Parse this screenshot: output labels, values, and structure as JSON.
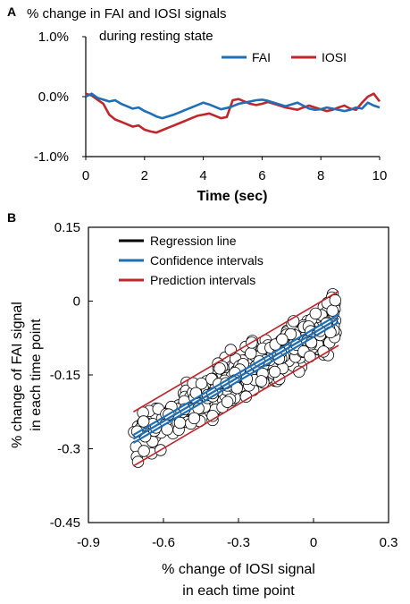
{
  "panels": {
    "a": {
      "letter": "A"
    },
    "b": {
      "letter": "B"
    }
  },
  "colors": {
    "fai": "#1f6fb6",
    "iosi": "#c0272d",
    "regression": "#000000"
  },
  "chart_data": [
    {
      "type": "line",
      "title": "% change in FAI and IOSI signals",
      "subtitle": "during resting state",
      "xlabel": "Time (sec)",
      "ylabel": "",
      "xlim": [
        0,
        10
      ],
      "ylim": [
        -1.0,
        1.0
      ],
      "xticks": [
        "0",
        "2",
        "4",
        "6",
        "8",
        "10"
      ],
      "yticks": [
        "1.0%",
        "0.0%",
        "-1.0%"
      ],
      "legend_position": "top-right",
      "x": [
        0.0,
        0.2,
        0.4,
        0.6,
        0.8,
        1.0,
        1.2,
        1.4,
        1.6,
        1.8,
        2.0,
        2.2,
        2.4,
        2.6,
        2.8,
        3.0,
        3.2,
        3.4,
        3.6,
        3.8,
        4.0,
        4.2,
        4.4,
        4.6,
        4.8,
        5.0,
        5.2,
        5.4,
        5.6,
        5.8,
        6.0,
        6.2,
        6.4,
        6.6,
        6.8,
        7.0,
        7.2,
        7.4,
        7.6,
        7.8,
        8.0,
        8.2,
        8.4,
        8.6,
        8.8,
        9.0,
        9.2,
        9.4,
        9.6,
        9.8,
        10.0
      ],
      "series": [
        {
          "name": "FAI",
          "values": [
            0.0,
            0.05,
            -0.02,
            -0.05,
            -0.08,
            -0.06,
            -0.12,
            -0.16,
            -0.2,
            -0.18,
            -0.24,
            -0.28,
            -0.33,
            -0.36,
            -0.33,
            -0.3,
            -0.26,
            -0.22,
            -0.18,
            -0.14,
            -0.1,
            -0.13,
            -0.17,
            -0.21,
            -0.19,
            -0.16,
            -0.12,
            -0.1,
            -0.08,
            -0.06,
            -0.05,
            -0.07,
            -0.1,
            -0.13,
            -0.16,
            -0.13,
            -0.1,
            -0.15,
            -0.2,
            -0.22,
            -0.21,
            -0.18,
            -0.2,
            -0.22,
            -0.24,
            -0.22,
            -0.18,
            -0.2,
            -0.1,
            -0.15,
            -0.18
          ]
        },
        {
          "name": "IOSI",
          "values": [
            0.05,
            0.02,
            -0.05,
            -0.12,
            -0.3,
            -0.38,
            -0.42,
            -0.46,
            -0.5,
            -0.48,
            -0.55,
            -0.58,
            -0.6,
            -0.56,
            -0.52,
            -0.48,
            -0.44,
            -0.4,
            -0.36,
            -0.32,
            -0.3,
            -0.28,
            -0.32,
            -0.36,
            -0.34,
            -0.06,
            -0.04,
            -0.08,
            -0.12,
            -0.14,
            -0.12,
            -0.09,
            -0.12,
            -0.15,
            -0.18,
            -0.2,
            -0.22,
            -0.18,
            -0.15,
            -0.18,
            -0.21,
            -0.24,
            -0.22,
            -0.18,
            -0.15,
            -0.2,
            -0.22,
            -0.1,
            0.0,
            0.05,
            -0.08
          ]
        }
      ]
    },
    {
      "type": "scatter",
      "xlabel": "% change of IOSI signal in each time point",
      "ylabel": "% change of FAI signal in each time point",
      "xlabel_lines": [
        "% change of IOSI signal",
        "in each time point"
      ],
      "ylabel_lines": [
        "% change of FAI signal",
        "in each time point"
      ],
      "xlim": [
        -0.9,
        0.3
      ],
      "ylim": [
        -0.45,
        0.15
      ],
      "xticks": [
        "-0.9",
        "-0.6",
        "-0.3",
        "0",
        "0.3"
      ],
      "yticks": [
        "0.15",
        "0",
        "-0.15",
        "-0.3",
        "-0.45"
      ],
      "legend_position": "top-left",
      "legend": [
        {
          "label": "Regression line",
          "color": "#000000"
        },
        {
          "label": "Confidence intervals",
          "color": "#1f6fb6"
        },
        {
          "label": "Prediction intervals",
          "color": "#c0272d"
        }
      ],
      "regression": {
        "x0": -0.72,
        "x1": 0.1,
        "y0": -0.28,
        "y1": -0.035
      },
      "confidence_offset": 0.008,
      "prediction_offset": 0.055,
      "point_count": 450,
      "x_range_points": [
        -0.72,
        0.09
      ],
      "y_noise": 0.045
    }
  ]
}
